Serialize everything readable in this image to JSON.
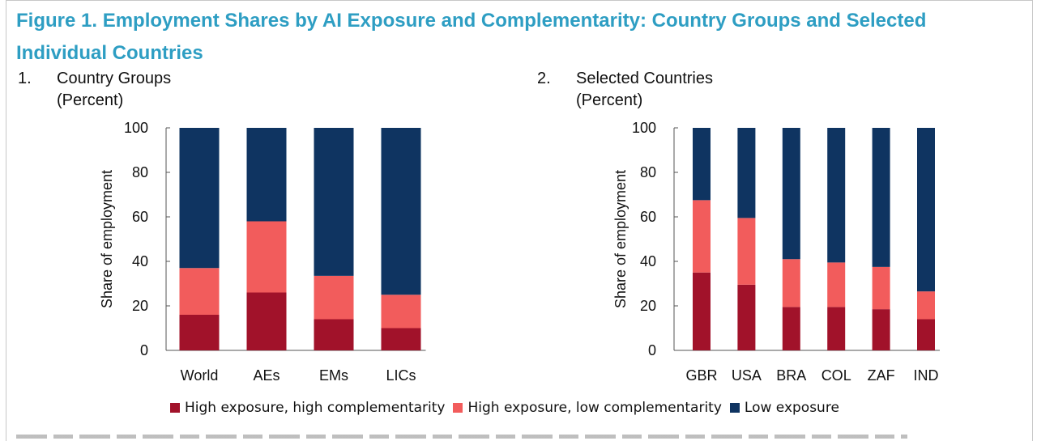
{
  "figure_title": "Figure 1.  Employment Shares by AI Exposure and Complementarity: Country Groups and Selected Individual Countries",
  "colors": {
    "title": "#2e9ec3",
    "high_exposure_high_complementarity": "#a1122a",
    "high_exposure_low_complementarity": "#f25c5c",
    "low_exposure": "#0f3461"
  },
  "legend": [
    {
      "label": "High exposure, high complementarity",
      "color": "#a1122a"
    },
    {
      "label": "High exposure, low complementarity",
      "color": "#f25c5c"
    },
    {
      "label": "Low exposure",
      "color": "#0f3461"
    }
  ],
  "chart_data": [
    {
      "type": "bar",
      "stacked": true,
      "number": "1.",
      "title": "Country Groups",
      "unit": "(Percent)",
      "ylabel": "Share of employment",
      "ylim": [
        0,
        100
      ],
      "yticks": [
        0,
        20,
        40,
        60,
        80,
        100
      ],
      "categories": [
        "World",
        "AEs",
        "EMs",
        "LICs"
      ],
      "series": [
        {
          "name": "High exposure, high complementarity",
          "values": [
            16,
            26,
            14,
            10
          ]
        },
        {
          "name": "High exposure, low complementarity",
          "values": [
            21,
            32,
            19.5,
            15
          ]
        },
        {
          "name": "Low exposure",
          "values": [
            63,
            42,
            66.5,
            75
          ]
        }
      ]
    },
    {
      "type": "bar",
      "stacked": true,
      "number": "2.",
      "title": "Selected Countries",
      "unit": "(Percent)",
      "ylabel": "Share of employment",
      "ylim": [
        0,
        100
      ],
      "yticks": [
        0,
        20,
        40,
        60,
        80,
        100
      ],
      "categories": [
        "GBR",
        "USA",
        "BRA",
        "COL",
        "ZAF",
        "IND"
      ],
      "series": [
        {
          "name": "High exposure, high complementarity",
          "values": [
            35,
            29.5,
            19.5,
            19.5,
            18.5,
            14
          ]
        },
        {
          "name": "High exposure, low complementarity",
          "values": [
            32.5,
            30,
            21.5,
            20,
            19,
            12.5
          ]
        },
        {
          "name": "Low exposure",
          "values": [
            32.5,
            40.5,
            59,
            60.5,
            62.5,
            73.5
          ]
        }
      ]
    }
  ]
}
